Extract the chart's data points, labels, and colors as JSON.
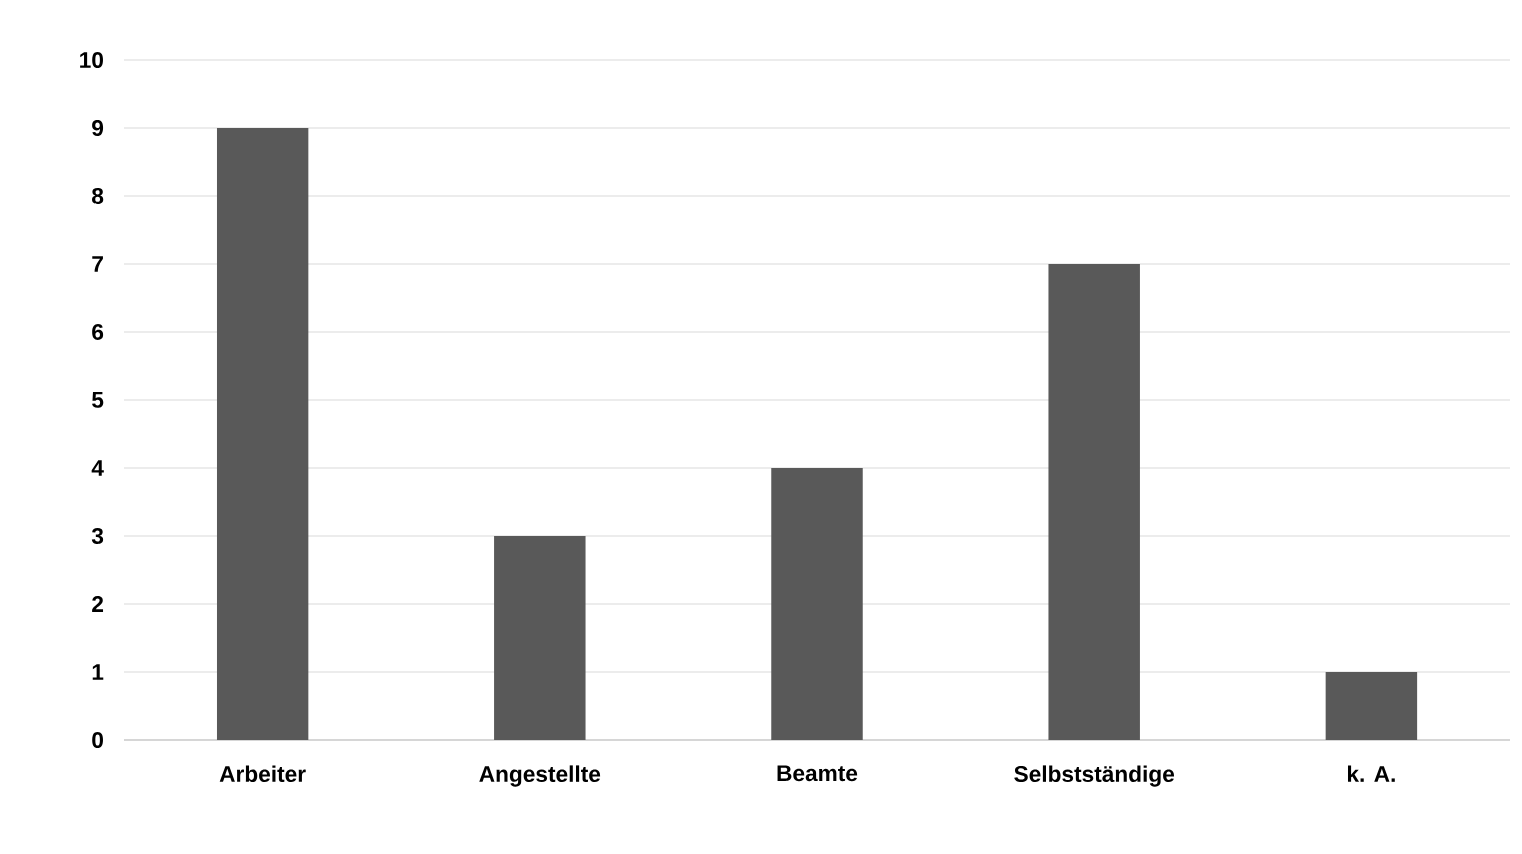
{
  "chart_data": {
    "type": "bar",
    "categories": [
      "Arbeiter",
      "Angestellte",
      "Beamte",
      "Selbstständige",
      "k. A."
    ],
    "values": [
      9,
      3,
      4,
      7,
      1
    ],
    "color": "#595959",
    "ylim": [
      0,
      10
    ],
    "yticks": [
      0,
      1,
      2,
      3,
      4,
      5,
      6,
      7,
      8,
      9,
      10
    ],
    "grid": "y"
  }
}
